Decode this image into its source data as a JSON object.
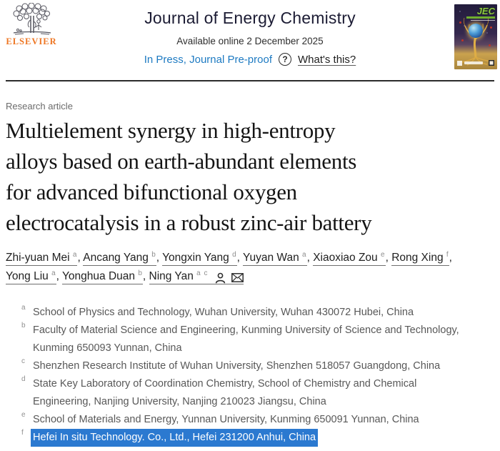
{
  "header": {
    "publisher": "ELSEVIER",
    "journal_title": "Journal of Energy Chemistry",
    "available_online": "Available online 2 December 2025",
    "in_press_label": "In Press, Journal Pre-proof",
    "help_icon_glyph": "?",
    "whats_this_label": "What's this?",
    "cover_logo": "JEC"
  },
  "article": {
    "type_label": "Research article",
    "title": "Multielement synergy in high-entropy alloys based on earth-abundant elements for advanced bifunctional oxygen electrocatalysis in a robust zinc-air battery",
    "title_lines": [
      "Multielement synergy in high-entropy",
      "alloys based on earth-abundant elements",
      "for advanced bifunctional oxygen",
      "electrocatalysis in a robust zinc-air battery"
    ],
    "authors": [
      {
        "name": "Zhi-yuan Mei",
        "sup": "a",
        "corresponding": false
      },
      {
        "name": "Ancang Yang",
        "sup": "b",
        "corresponding": false
      },
      {
        "name": "Yongxin Yang",
        "sup": "d",
        "corresponding": false
      },
      {
        "name": "Yuyan Wan",
        "sup": "a",
        "corresponding": false
      },
      {
        "name": "Xiaoxiao Zou",
        "sup": "e",
        "corresponding": false
      },
      {
        "name": "Rong Xing",
        "sup": "f",
        "corresponding": false
      },
      {
        "name": "Yong Liu",
        "sup": "a",
        "corresponding": false
      },
      {
        "name": "Yonghua Duan",
        "sup": "b",
        "corresponding": false
      },
      {
        "name": "Ning Yan",
        "sup": "a c",
        "corresponding": true
      }
    ],
    "author_separator": ", ",
    "corresponding_icons": [
      "person-icon",
      "envelope-icon"
    ],
    "affiliations": [
      {
        "label": "a",
        "text": "School of Physics and Technology, Wuhan University, Wuhan 430072 Hubei, China",
        "highlighted": false
      },
      {
        "label": "b",
        "text": "Faculty of Material Science and Engineering, Kunming University of Science and Technology, Kunming 650093 Yunnan, China",
        "highlighted": false
      },
      {
        "label": "c",
        "text": "Shenzhen Research Institute of Wuhan University, Shenzhen 518057 Guangdong, China",
        "highlighted": false
      },
      {
        "label": "d",
        "text": "State Key Laboratory of Coordination Chemistry, School of Chemistry and Chemical Engineering, Nanjing University, Nanjing 210023 Jiangsu, China",
        "highlighted": false
      },
      {
        "label": "e",
        "text": "School of Materials and Energy, Yunnan University, Kunming 650091 Yunnan, China",
        "highlighted": false
      },
      {
        "label": "f",
        "text": "Hefei In situ Technology. Co., Ltd., Hefei 231200 Anhui, China",
        "highlighted": true
      }
    ]
  },
  "colors": {
    "link_blue": "#1d7ac2",
    "elsevier_orange": "#ee7623",
    "selection_highlight_blue": "#2b79d0",
    "highlight_text": "#ffffff",
    "cover_logo_green": "#8dc63f",
    "title_text": "#141414",
    "affiliation_gray": "#585858"
  }
}
